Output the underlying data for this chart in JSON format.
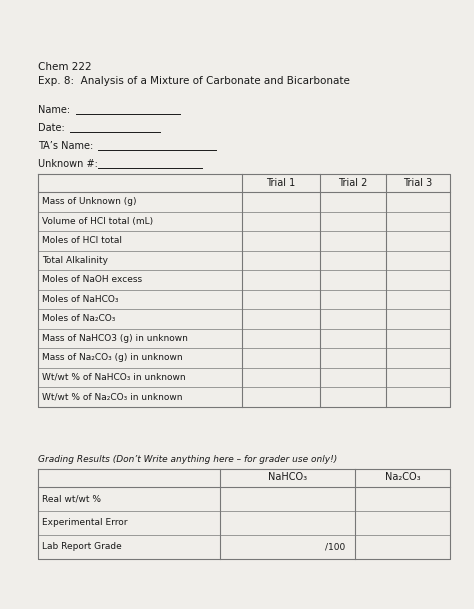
{
  "title_line1": "Chem 222",
  "title_line2": "Exp. 8:  Analysis of a Mixture of Carbonate and Bicarbonate",
  "field_labels": [
    "Name:",
    "Date:",
    "TA’s Name:",
    "Unknown #:"
  ],
  "field_underline_lengths": [
    0.22,
    0.19,
    0.25,
    0.22
  ],
  "main_table_headers": [
    "",
    "Trial 1",
    "Trial 2",
    "Trial 3"
  ],
  "main_table_rows": [
    "Mass of Unknown (g)",
    "Volume of HCl total (mL)",
    "Moles of HCl total",
    "Total Alkalinity",
    "Moles of NaOH excess",
    "Moles of NaHCO₃",
    "Moles of Na₂CO₃",
    "Mass of NaHCO3 (g) in unknown",
    "Mass of Na₂CO₃ (g) in unknown",
    "Wt/wt % of NaHCO₃ in unknown",
    "Wt/wt % of Na₂CO₃ in unknown"
  ],
  "grading_label": "Grading Results (Don’t Write anything here – for grader use only!)",
  "grading_headers": [
    "",
    "NaHCO₃",
    "Na₂CO₃"
  ],
  "grading_rows": [
    {
      "label": "Real wt/wt %",
      "note": ""
    },
    {
      "label": "Experimental Error",
      "note": ""
    },
    {
      "label": "Lab Report Grade",
      "note": "/100"
    }
  ],
  "bg_color": "#f0eeea",
  "text_color": "#1a1a1a",
  "table_line_color": "#777777",
  "font_size": 7.0
}
